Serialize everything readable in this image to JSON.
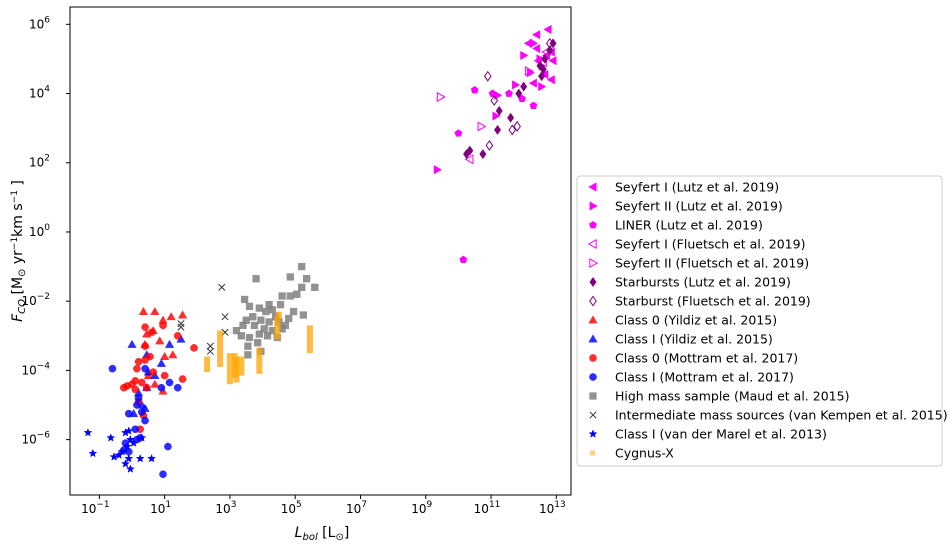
{
  "chart_data": {
    "type": "scatter",
    "xlabel": "L_bol [L⊙]",
    "ylabel": "F_CO [M⊙ yr⁻¹km s⁻¹ ]",
    "xscale": "log",
    "yscale": "log",
    "xlim_log10": [
      -1.9,
      13.45
    ],
    "ylim_log10": [
      -7.6,
      6.5
    ],
    "x_tick_exponents": [
      -1,
      1,
      3,
      5,
      7,
      9,
      11,
      13
    ],
    "y_tick_exponents": [
      -6,
      -4,
      -2,
      0,
      2,
      4,
      6
    ],
    "tick_base": "10",
    "grid": false,
    "legend_position": "outside-right",
    "series": [
      {
        "name": "Seyfert I (Lutz et al. 2019)",
        "marker": "tri-left",
        "color": "#ff00ff",
        "filled": true,
        "points": [
          [
            12.4,
            5.7
          ],
          [
            12.75,
            5.85
          ],
          [
            12.15,
            5.45
          ],
          [
            12.4,
            5.3
          ],
          [
            12.9,
            4.95
          ],
          [
            12.7,
            5.1
          ],
          [
            12.85,
            5.2
          ],
          [
            12.45,
            4.95
          ],
          [
            12.85,
            4.4
          ],
          [
            12.3,
            4.3
          ],
          [
            12.65,
            4.55
          ]
        ]
      },
      {
        "name": "Seyfert II (Lutz et al. 2019)",
        "marker": "tri-right",
        "color": "#ff00ff",
        "filled": true,
        "points": [
          [
            12.0,
            5.1
          ],
          [
            12.3,
            5.45
          ],
          [
            12.5,
            5.0
          ],
          [
            12.2,
            4.6
          ],
          [
            11.75,
            4.25
          ],
          [
            11.2,
            3.95
          ],
          [
            12.55,
            4.2
          ],
          [
            11.15,
            3.35
          ],
          [
            9.35,
            1.8
          ]
        ]
      },
      {
        "name": "LINER (Lutz et al. 2019)",
        "marker": "pentagon",
        "color": "#ff00ff",
        "filled": true,
        "points": [
          [
            10.5,
            4.1
          ],
          [
            11.05,
            4.0
          ],
          [
            11.55,
            4.0
          ],
          [
            10.0,
            2.85
          ],
          [
            11.95,
            3.85
          ],
          [
            12.3,
            3.65
          ],
          [
            10.15,
            -0.8
          ]
        ]
      },
      {
        "name": "Seyfert I (Fluetsch et al. 2019)",
        "marker": "tri-left",
        "color": "#ff00ff",
        "filled": false,
        "points": [
          [
            12.7,
            5.2
          ],
          [
            12.6,
            4.9
          ],
          [
            10.35,
            2.1
          ]
        ]
      },
      {
        "name": "Seyfert II (Fluetsch et al. 2019)",
        "marker": "tri-right",
        "color": "#ff00ff",
        "filled": false,
        "points": [
          [
            9.45,
            3.9
          ],
          [
            12.15,
            4.65
          ],
          [
            10.7,
            3.05
          ]
        ]
      },
      {
        "name": "Starbursts (Lutz et al. 2019)",
        "marker": "diamond",
        "color": "#800080",
        "filled": true,
        "points": [
          [
            12.9,
            5.45
          ],
          [
            12.8,
            5.25
          ],
          [
            12.65,
            5.0
          ],
          [
            12.5,
            4.8
          ],
          [
            12.6,
            4.7
          ],
          [
            12.55,
            4.5
          ],
          [
            11.85,
            4.0
          ],
          [
            12.0,
            4.2
          ],
          [
            11.25,
            3.5
          ],
          [
            11.6,
            3.3
          ],
          [
            11.2,
            2.95
          ],
          [
            10.35,
            2.35
          ],
          [
            10.75,
            2.25
          ],
          [
            10.25,
            2.25
          ]
        ]
      },
      {
        "name": "Starburst (Fluetsch et al. 2019)",
        "marker": "diamond",
        "color": "#800080",
        "filled": false,
        "points": [
          [
            10.9,
            4.5
          ],
          [
            11.1,
            3.8
          ],
          [
            11.8,
            3.05
          ],
          [
            11.65,
            2.95
          ],
          [
            10.95,
            2.5
          ],
          [
            12.8,
            5.45
          ]
        ]
      },
      {
        "name": "Class 0 (Yildiz et al. 2015)",
        "marker": "triangle-up",
        "color": "#ff0000",
        "filled": true,
        "points": [
          [
            0.35,
            -2.3
          ],
          [
            0.7,
            -2.3
          ],
          [
            0.95,
            -2.55
          ],
          [
            1.2,
            -2.45
          ],
          [
            1.55,
            -2.4
          ],
          [
            0.65,
            -2.85
          ],
          [
            0.45,
            -2.95
          ],
          [
            0.4,
            -3.25
          ],
          [
            0.85,
            -3.15
          ],
          [
            1.0,
            -3.6
          ],
          [
            0.5,
            -4.15
          ],
          [
            0.7,
            -4.4
          ],
          [
            0.95,
            -4.6
          ],
          [
            1.25,
            -3.55
          ]
        ]
      },
      {
        "name": "Class I (Yildiz et al. 2015)",
        "marker": "triangle-up",
        "color": "#0000ff",
        "filled": true,
        "points": [
          [
            0.0,
            -3.25
          ],
          [
            0.45,
            -3.55
          ],
          [
            0.5,
            -4.05
          ],
          [
            1.15,
            -3.25
          ],
          [
            1.5,
            -3.1
          ],
          [
            0.9,
            -3.8
          ],
          [
            0.7,
            -4.15
          ],
          [
            0.45,
            -4.5
          ],
          [
            0.2,
            -4.65
          ],
          [
            0.3,
            -5.0
          ],
          [
            0.05,
            -5.25
          ],
          [
            0.4,
            -5.1
          ]
        ]
      },
      {
        "name": "Class 0 (Mottram et al. 2017)",
        "marker": "circle",
        "color": "#ff0000",
        "filled": true,
        "points": [
          [
            0.4,
            -2.75
          ],
          [
            0.6,
            -2.9
          ],
          [
            0.95,
            -2.7
          ],
          [
            1.4,
            -3.0
          ],
          [
            1.9,
            -3.35
          ],
          [
            0.4,
            -3.3
          ],
          [
            0.55,
            -3.6
          ],
          [
            0.2,
            -3.75
          ],
          [
            0.4,
            -3.7
          ],
          [
            0.15,
            -3.95
          ],
          [
            0.65,
            -4.05
          ],
          [
            1.0,
            -4.15
          ],
          [
            1.55,
            -4.25
          ],
          [
            0.1,
            -4.3
          ],
          [
            0.3,
            -4.35
          ],
          [
            -0.25,
            -4.5
          ],
          [
            0.0,
            -4.4
          ],
          [
            -0.15,
            -4.45
          ],
          [
            0.1,
            -4.55
          ],
          [
            0.45,
            -4.5
          ],
          [
            0.2,
            -4.9
          ],
          [
            0.35,
            -5.3
          ],
          [
            0.25,
            -5.7
          ]
        ]
      },
      {
        "name": "Class I (Mottram et al. 2017)",
        "marker": "circle",
        "color": "#0000ff",
        "filled": true,
        "points": [
          [
            -0.6,
            -3.95
          ],
          [
            0.4,
            -3.95
          ],
          [
            1.15,
            -4.35
          ],
          [
            0.9,
            -4.5
          ],
          [
            1.4,
            -4.5
          ],
          [
            0.2,
            -4.8
          ],
          [
            0.15,
            -5.0
          ],
          [
            0.3,
            -5.2
          ],
          [
            -0.1,
            -5.25
          ],
          [
            0.4,
            -5.45
          ],
          [
            0.1,
            -5.7
          ],
          [
            0.25,
            -5.95
          ],
          [
            0.15,
            -6.0
          ],
          [
            -0.2,
            -6.1
          ],
          [
            -0.1,
            -6.35
          ],
          [
            1.1,
            -6.2
          ],
          [
            -0.25,
            -6.3
          ],
          [
            0.95,
            -7.0
          ]
        ]
      },
      {
        "name": "High mass sample (Maud et al. 2015)",
        "marker": "square",
        "color": "#808080",
        "filled": true,
        "points": [
          [
            5.2,
            -1.0
          ],
          [
            5.35,
            -1.35
          ],
          [
            5.6,
            -1.6
          ],
          [
            4.85,
            -1.3
          ],
          [
            5.2,
            -1.6
          ],
          [
            5.05,
            -1.8
          ],
          [
            3.8,
            -1.35
          ],
          [
            4.2,
            -2.1
          ],
          [
            4.6,
            -1.85
          ],
          [
            4.55,
            -2.1
          ],
          [
            4.3,
            -2.25
          ],
          [
            4.85,
            -1.85
          ],
          [
            5.25,
            -2.4
          ],
          [
            4.95,
            -2.3
          ],
          [
            3.45,
            -1.95
          ],
          [
            3.6,
            -2.15
          ],
          [
            3.9,
            -2.2
          ],
          [
            4.1,
            -2.3
          ],
          [
            4.4,
            -2.45
          ],
          [
            4.8,
            -2.5
          ],
          [
            3.7,
            -2.45
          ],
          [
            3.95,
            -2.55
          ],
          [
            4.2,
            -2.6
          ],
          [
            4.5,
            -2.6
          ],
          [
            4.7,
            -2.7
          ],
          [
            3.5,
            -2.55
          ],
          [
            3.4,
            -2.7
          ],
          [
            3.75,
            -2.7
          ],
          [
            4.05,
            -2.8
          ],
          [
            4.3,
            -2.85
          ],
          [
            4.6,
            -2.8
          ],
          [
            3.9,
            -2.95
          ],
          [
            4.15,
            -3.0
          ],
          [
            3.6,
            -3.05
          ],
          [
            3.35,
            -3.0
          ],
          [
            3.55,
            -3.3
          ],
          [
            3.85,
            -3.2
          ],
          [
            4.45,
            -3.05
          ],
          [
            3.2,
            -2.85
          ],
          [
            3.95,
            -3.45
          ],
          [
            3.55,
            -3.55
          ]
        ]
      },
      {
        "name": "Intermediate mass sources (van Kempen et al. 2015)",
        "marker": "x",
        "color": "#333333",
        "filled": false,
        "points": [
          [
            2.75,
            -1.6
          ],
          [
            2.85,
            -2.45
          ],
          [
            1.5,
            -2.65
          ],
          [
            1.5,
            -2.75
          ],
          [
            2.85,
            -2.9
          ],
          [
            2.4,
            -3.3
          ],
          [
            2.4,
            -3.45
          ]
        ]
      },
      {
        "name": "Class I (van der Marel et al. 2013)",
        "marker": "star",
        "color": "#0000ff",
        "filled": true,
        "points": [
          [
            -1.35,
            -5.8
          ],
          [
            -0.65,
            -5.95
          ],
          [
            -1.2,
            -6.4
          ],
          [
            0.3,
            -5.95
          ],
          [
            -0.1,
            -5.75
          ],
          [
            -0.2,
            -5.8
          ],
          [
            -0.05,
            -6.0
          ],
          [
            -0.15,
            -6.2
          ],
          [
            -0.3,
            -6.35
          ],
          [
            -0.1,
            -6.55
          ],
          [
            -0.2,
            -6.7
          ],
          [
            -0.4,
            -6.45
          ],
          [
            -0.55,
            -6.5
          ],
          [
            0.25,
            -6.55
          ],
          [
            -0.05,
            -6.85
          ],
          [
            0.05,
            -6.1
          ],
          [
            0.6,
            -6.55
          ]
        ]
      },
      {
        "name": "Cygnus-X",
        "marker": "vbar",
        "color": "#ffa500",
        "filled": true,
        "bars": [
          [
            2.3,
            -4.05,
            -3.6
          ],
          [
            2.7,
            -3.9,
            -2.85
          ],
          [
            3.0,
            -4.4,
            -3.5
          ],
          [
            3.15,
            -4.2,
            -3.5
          ],
          [
            3.2,
            -4.35,
            -3.6
          ],
          [
            3.35,
            -4.15,
            -3.6
          ],
          [
            3.9,
            -4.1,
            -3.35
          ],
          [
            4.45,
            -3.1,
            -2.45
          ],
          [
            4.5,
            -2.5,
            -2.3
          ],
          [
            5.45,
            -3.5,
            -2.7
          ]
        ]
      }
    ]
  }
}
